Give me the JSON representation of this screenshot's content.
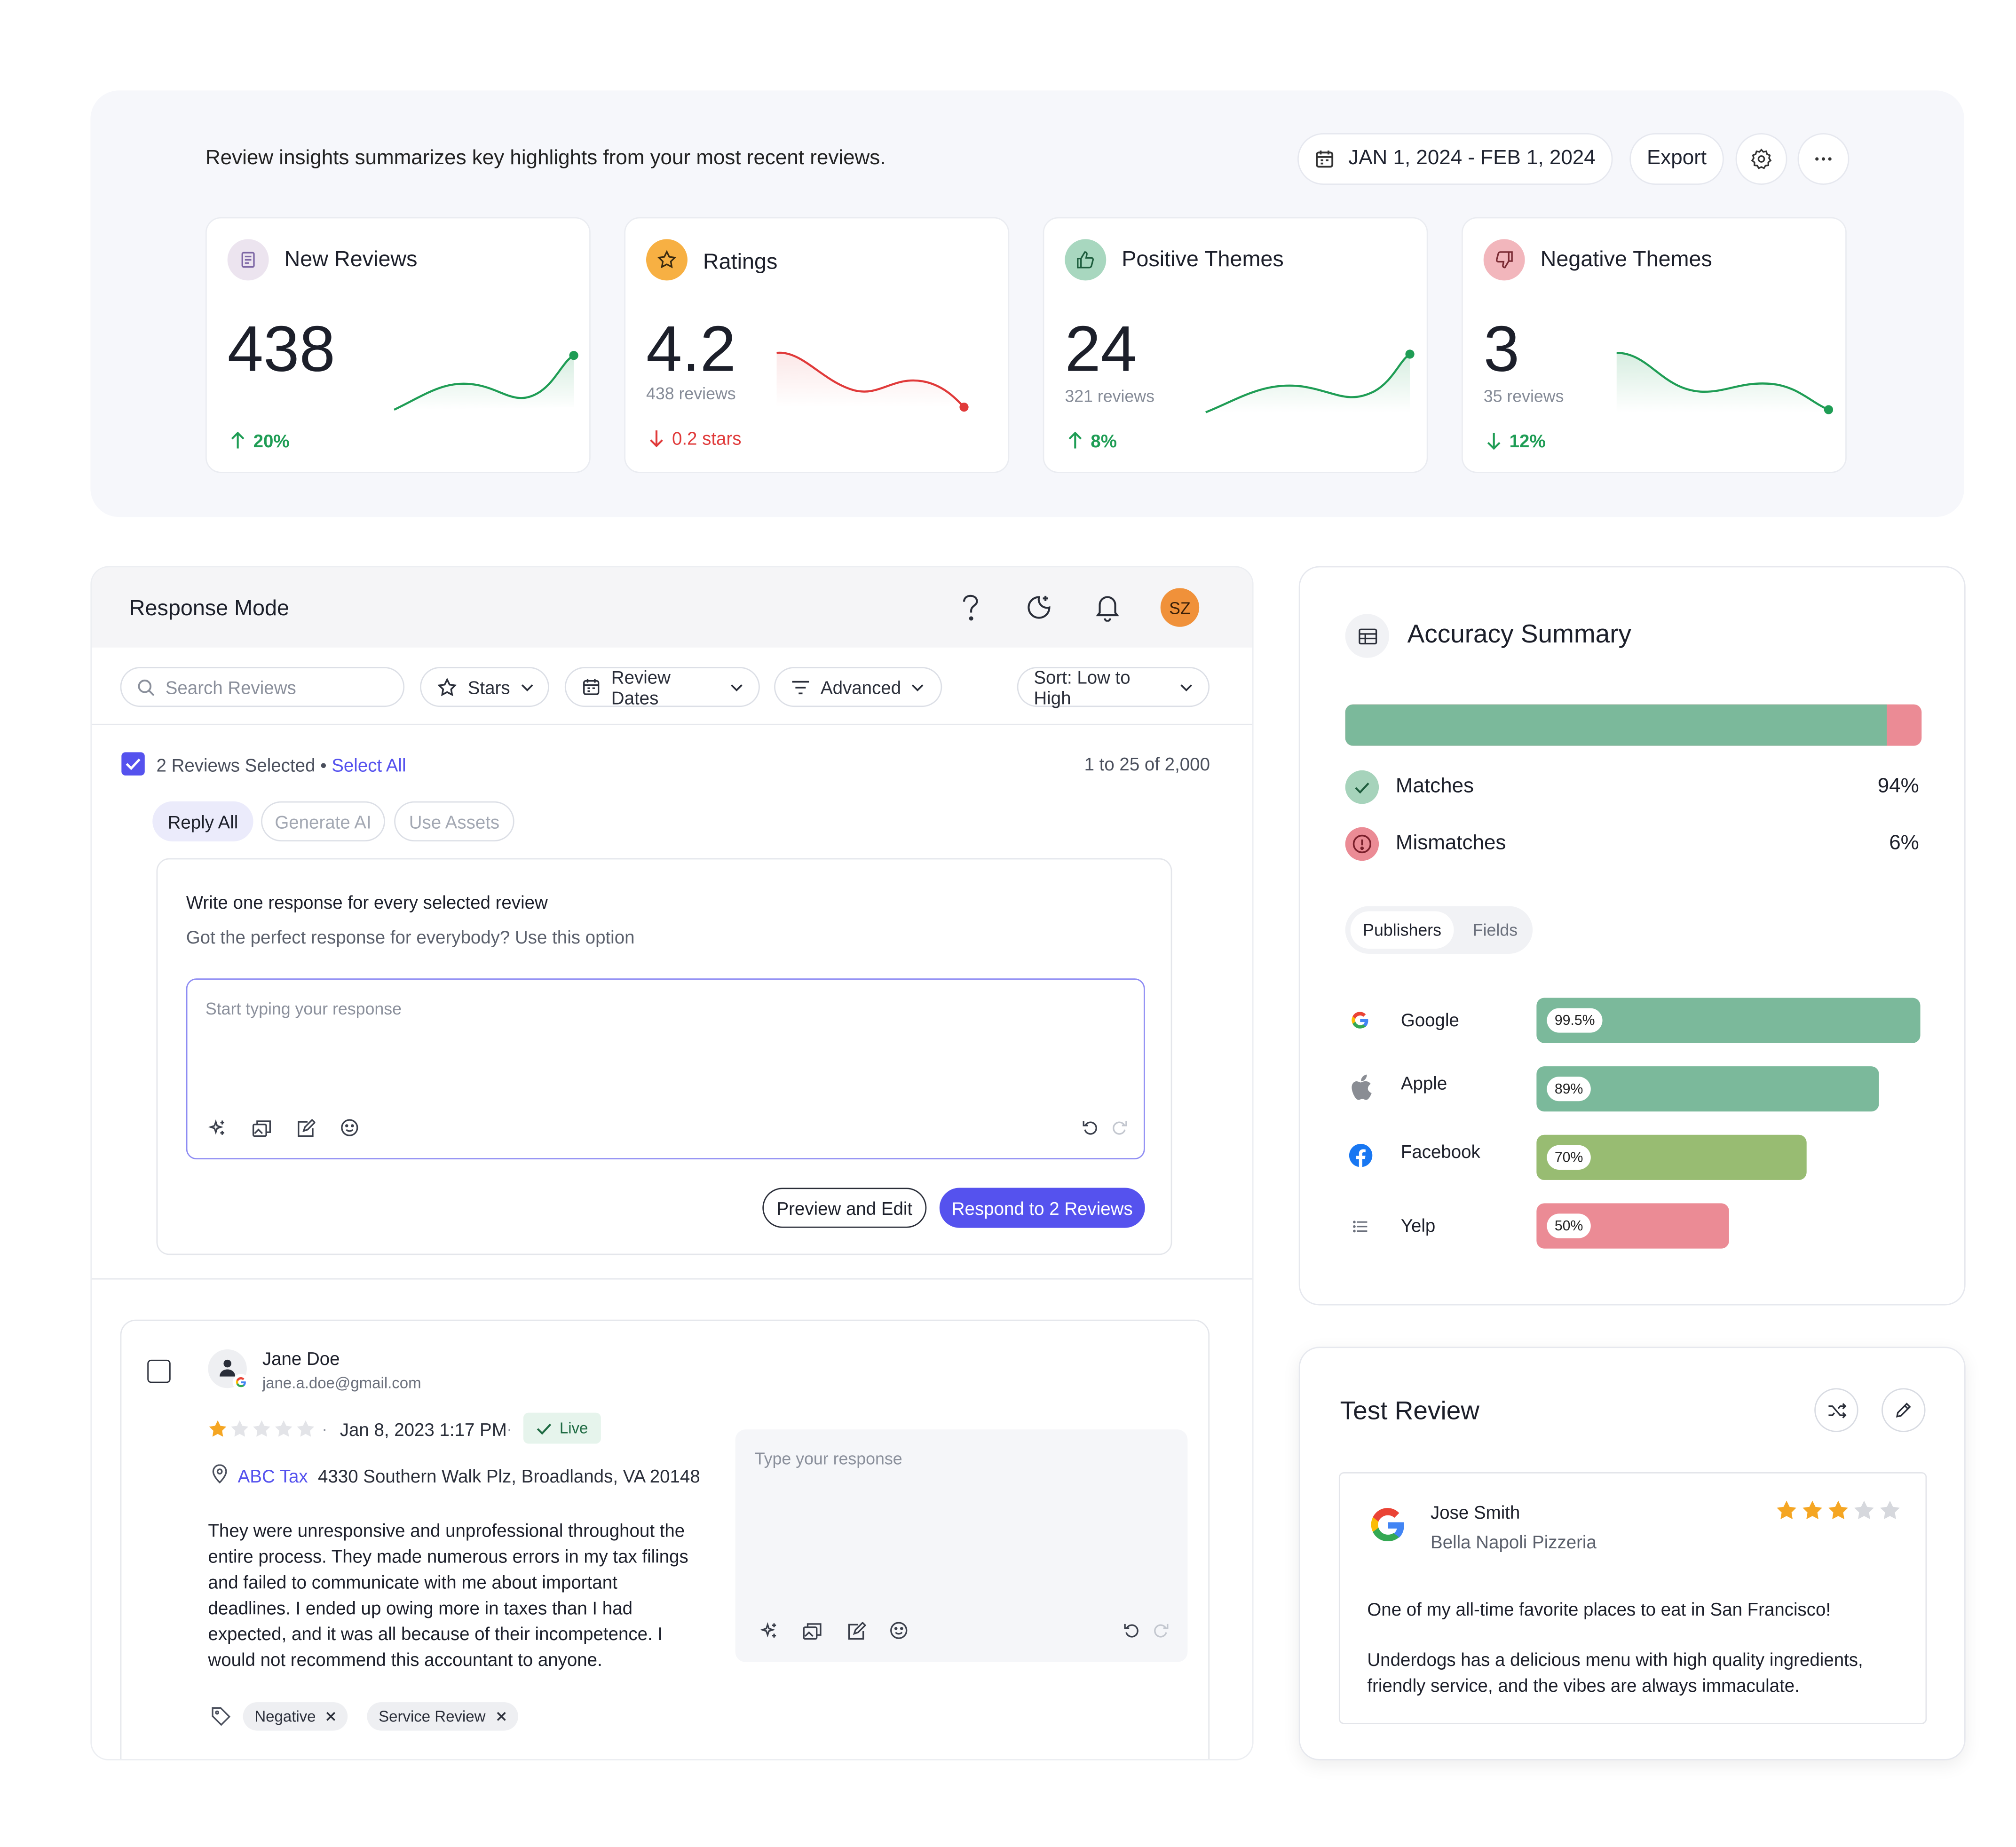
{
  "insights": {
    "intro": "Review insights summarizes key highlights from your most recent reviews.",
    "date_range": "JAN 1, 2024 - FEB 1, 2024",
    "export_label": "Export",
    "cards": [
      {
        "title": "New Reviews",
        "value": "438",
        "sub": "",
        "delta": "20%",
        "trend": "up",
        "color": "#1f9d55",
        "icon": "document-icon"
      },
      {
        "title": "Ratings",
        "value": "4.2",
        "sub": "438 reviews",
        "delta": "0.2 stars",
        "trend": "down",
        "color": "#e03a3a",
        "icon": "star-icon"
      },
      {
        "title": "Positive Themes",
        "value": "24",
        "sub": "321 reviews",
        "delta": "8%",
        "trend": "up",
        "color": "#1f9d55",
        "icon": "thumbs-up-icon"
      },
      {
        "title": "Negative Themes",
        "value": "3",
        "sub": "35 reviews",
        "delta": "12%",
        "trend": "down",
        "color": "#1f9d55",
        "icon": "thumbs-down-icon"
      }
    ]
  },
  "response": {
    "title": "Response Mode",
    "avatar_initials": "SZ",
    "search_placeholder": "Search Reviews",
    "filters": {
      "stars": "Stars",
      "dates": "Review Dates",
      "advanced": "Advanced",
      "sort": "Sort: Low to High"
    },
    "selected_text": "2 Reviews Selected",
    "bullet": "•",
    "select_all": "Select All",
    "pagination": "1 to 25 of 2,000",
    "tabs": {
      "reply_all": "Reply All",
      "generate_ai": "Generate AI",
      "use_assets": "Use Assets"
    },
    "compose": {
      "heading": "Write one response for every selected review",
      "subheading": "Got the perfect response for everybody? Use this option",
      "placeholder": "Start typing your response",
      "preview_label": "Preview and Edit",
      "respond_label": "Respond to 2 Reviews"
    },
    "review": {
      "name": "Jane Doe",
      "email": "jane.a.doe@gmail.com",
      "rating": 1,
      "date": "Jan 8, 2023 1:17 PM",
      "separator": "·",
      "status": "Live",
      "business": "ABC Tax",
      "address": "4330 Southern Walk Plz, Broadlands, VA 20148",
      "text": "They were unresponsive and unprofessional throughout the entire process. They made numerous errors in my tax filings and failed to communicate with me about important deadlines. I ended up owing more in taxes than I had expected, and it was all because of their incompetence. I would not recommend this accountant to anyone.",
      "tags": [
        "Negative",
        "Service Review"
      ],
      "response_placeholder": "Type your response"
    }
  },
  "accuracy": {
    "title": "Accuracy Summary",
    "matches_label": "Matches",
    "matches_value": "94%",
    "mismatches_label": "Mismatches",
    "mismatches_value": "6%",
    "matches_fraction": 0.94,
    "toggle": {
      "publishers": "Publishers",
      "fields": "Fields"
    },
    "publishers": [
      {
        "name": "Google",
        "value": "99.5%",
        "fraction": 0.995,
        "color": "#7bb99b",
        "icon": "google-icon"
      },
      {
        "name": "Apple",
        "value": "89%",
        "fraction": 0.89,
        "color": "#7bb99b",
        "icon": "apple-icon"
      },
      {
        "name": "Facebook",
        "value": "70%",
        "fraction": 0.7,
        "color": "#98bc72",
        "icon": "facebook-icon"
      },
      {
        "name": "Yelp",
        "value": "50%",
        "fraction": 0.5,
        "color": "#eb8b95",
        "icon": "yelp-icon"
      }
    ]
  },
  "test_review": {
    "title": "Test Review",
    "reviewer": "Jose Smith",
    "business": "Bella Napoli Pizzeria",
    "rating": 3,
    "line1": "One of my all-time favorite places to eat in San Francisco!",
    "line2": "Underdogs has a delicious menu with high quality ingredients, friendly service, and the vibes are always immaculate."
  },
  "colors": {
    "accent": "#5552ee",
    "avatar": "#f0913a",
    "match": "#7bb99b",
    "mismatch": "#eb8b95"
  }
}
